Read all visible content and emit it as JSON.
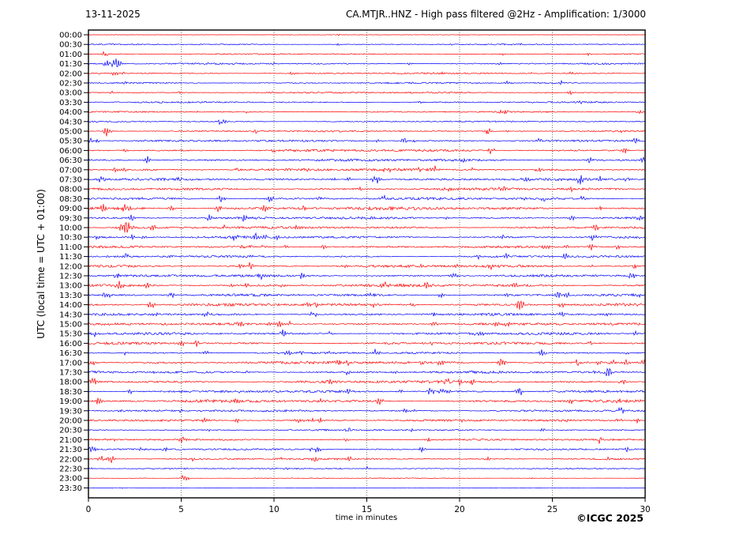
{
  "header": {
    "date": "13-11-2025",
    "title": "CA.MTJR..HNZ - High pass filtered @2Hz - Amplification: 1/3000"
  },
  "footer": {
    "copyright": "©ICGC 2025"
  },
  "chart_data": {
    "type": "line",
    "subtype": "helicorder-seismogram",
    "title": "CA.MTJR..HNZ - High pass filtered @2Hz - Amplification: 1/3000",
    "date": "13-11-2025",
    "station": "CA.MTJR..HNZ",
    "filter": "High pass filtered @2Hz",
    "amplification": "1/3000",
    "xlabel": "time in minutes",
    "ylabel": "UTC (local time = UTC + 01:00)",
    "xlim": [
      0,
      30
    ],
    "x_ticks": [
      0,
      5,
      10,
      15,
      20,
      25,
      30
    ],
    "grid": "vertical dotted lines every 5 minutes",
    "legend": "none",
    "colors": {
      "trace_red": "#ff0000",
      "trace_blue": "#0000ff",
      "grid": "#555555",
      "frame": "#000000",
      "text": "#000000",
      "background": "#ffffff"
    },
    "row_note": "48 half-hour traces, alternating red (on the hour) and blue (on the half hour). n = background noise half-amplitude (px-relative), ev = notable bursts as [minute, relative amplitude].",
    "rows": [
      {
        "t": "00:00",
        "c": "r",
        "n": 0.25,
        "ev": [
          [
            13.5,
            1.0
          ]
        ]
      },
      {
        "t": "00:30",
        "c": "b",
        "n": 0.7,
        "ev": [
          [
            13.5,
            1.2
          ],
          [
            19.5,
            1.2
          ],
          [
            23.0,
            1.0
          ]
        ]
      },
      {
        "t": "01:00",
        "c": "r",
        "n": 0.7,
        "ev": [
          [
            0.9,
            1.8
          ],
          [
            10.0,
            1.0
          ],
          [
            27.0,
            1.2
          ]
        ]
      },
      {
        "t": "01:30",
        "c": "b",
        "n": 0.9,
        "ev": [
          [
            1.0,
            2.5
          ],
          [
            1.5,
            4.5
          ],
          [
            7.0,
            1.0
          ]
        ]
      },
      {
        "t": "02:00",
        "c": "r",
        "n": 0.9,
        "ev": [
          [
            1.5,
            1.2
          ],
          [
            26.0,
            1.0
          ]
        ]
      },
      {
        "t": "02:30",
        "c": "b",
        "n": 0.9,
        "ev": [
          [
            2.0,
            1.0
          ],
          [
            25.5,
            1.5
          ]
        ]
      },
      {
        "t": "03:00",
        "c": "r",
        "n": 0.9,
        "ev": [
          [
            9.8,
            1.5
          ],
          [
            26.0,
            1.5
          ]
        ]
      },
      {
        "t": "03:30",
        "c": "b",
        "n": 0.9,
        "ev": [
          [
            26.5,
            1.5
          ]
        ]
      },
      {
        "t": "04:00",
        "c": "r",
        "n": 0.8,
        "ev": [
          [
            29.7,
            1.5
          ]
        ]
      },
      {
        "t": "04:30",
        "c": "b",
        "n": 0.8,
        "ev": [
          [
            7.2,
            2.8
          ]
        ]
      },
      {
        "t": "05:00",
        "c": "r",
        "n": 0.9,
        "ev": [
          [
            1.0,
            3.5
          ],
          [
            21.5,
            2.5
          ]
        ]
      },
      {
        "t": "05:30",
        "c": "b",
        "n": 1.2,
        "ev": [
          [
            0.5,
            1.5
          ],
          [
            17.0,
            2.2
          ],
          [
            29.5,
            2.8
          ]
        ]
      },
      {
        "t": "06:00",
        "c": "r",
        "n": 1.4,
        "ev": [
          [
            2.0,
            1.5
          ],
          [
            10.0,
            1.5
          ],
          [
            21.7,
            2.6
          ],
          [
            28.9,
            1.8
          ]
        ]
      },
      {
        "t": "06:30",
        "c": "b",
        "n": 1.4,
        "ev": [
          [
            3.2,
            2.6
          ],
          [
            20.2,
            2.2
          ],
          [
            27.0,
            1.8
          ],
          [
            29.9,
            2.2
          ]
        ]
      },
      {
        "t": "07:00",
        "c": "r",
        "n": 1.5,
        "ev": [
          [
            1.5,
            2.0
          ],
          [
            8.0,
            2.2
          ],
          [
            16.0,
            1.8
          ],
          [
            24.2,
            2.2
          ]
        ]
      },
      {
        "t": "07:30",
        "c": "b",
        "n": 1.4,
        "ev": [
          [
            0.7,
            2.5
          ],
          [
            15.5,
            3.0
          ],
          [
            23.6,
            2.5
          ],
          [
            26.5,
            3.0
          ],
          [
            29.0,
            2.0
          ]
        ]
      },
      {
        "t": "08:00",
        "c": "r",
        "n": 1.4,
        "ev": [
          [
            19.3,
            2.0
          ],
          [
            22.3,
            3.0
          ],
          [
            26.0,
            2.2
          ]
        ]
      },
      {
        "t": "08:30",
        "c": "b",
        "n": 1.4,
        "ev": [
          [
            3.0,
            2.2
          ],
          [
            9.8,
            2.5
          ],
          [
            16.0,
            2.5
          ],
          [
            24.5,
            1.8
          ]
        ]
      },
      {
        "t": "09:00",
        "c": "r",
        "n": 1.8,
        "ev": [
          [
            0.8,
            2.5
          ],
          [
            2.0,
            3.5
          ],
          [
            4.5,
            2.2
          ],
          [
            7.0,
            2.5
          ],
          [
            9.5,
            2.8
          ],
          [
            11.5,
            2.5
          ],
          [
            27.5,
            2.5
          ]
        ]
      },
      {
        "t": "09:30",
        "c": "b",
        "n": 1.4,
        "ev": [
          [
            2.3,
            2.5
          ],
          [
            6.5,
            2.0
          ],
          [
            26.0,
            2.5
          ],
          [
            29.7,
            2.0
          ]
        ]
      },
      {
        "t": "10:00",
        "c": "r",
        "n": 1.4,
        "ev": [
          [
            2.0,
            5.5
          ],
          [
            3.5,
            2.2
          ],
          [
            11.3,
            2.5
          ],
          [
            27.3,
            2.5
          ]
        ]
      },
      {
        "t": "10:30",
        "c": "b",
        "n": 1.4,
        "ev": [
          [
            0.5,
            1.8
          ],
          [
            3.0,
            2.2
          ],
          [
            9.0,
            2.2
          ],
          [
            27.2,
            2.5
          ]
        ]
      },
      {
        "t": "11:00",
        "c": "r",
        "n": 1.2,
        "ev": [
          [
            8.3,
            1.8
          ],
          [
            24.7,
            2.5
          ],
          [
            25.8,
            2.0
          ]
        ]
      },
      {
        "t": "11:30",
        "c": "b",
        "n": 1.2,
        "ev": [
          [
            2.0,
            2.2
          ],
          [
            8.7,
            2.0
          ],
          [
            21.0,
            1.8
          ],
          [
            25.7,
            2.5
          ]
        ]
      },
      {
        "t": "12:00",
        "c": "r",
        "n": 1.4,
        "ev": [
          [
            8.7,
            2.5
          ],
          [
            18.0,
            1.6
          ],
          [
            21.7,
            2.0
          ],
          [
            29.5,
            2.0
          ]
        ]
      },
      {
        "t": "12:30",
        "c": "b",
        "n": 1.4,
        "ev": [
          [
            1.5,
            2.0
          ],
          [
            9.3,
            1.8
          ],
          [
            11.5,
            2.0
          ],
          [
            19.7,
            2.6
          ],
          [
            29.3,
            2.2
          ]
        ]
      },
      {
        "t": "13:00",
        "c": "r",
        "n": 1.6,
        "ev": [
          [
            1.7,
            3.2
          ],
          [
            3.2,
            2.4
          ],
          [
            8.5,
            1.8
          ],
          [
            18.2,
            2.6
          ],
          [
            23.0,
            2.0
          ]
        ]
      },
      {
        "t": "13:30",
        "c": "b",
        "n": 1.4,
        "ev": [
          [
            1.0,
            3.2
          ],
          [
            4.5,
            2.2
          ],
          [
            19.0,
            2.0
          ],
          [
            25.3,
            2.6
          ],
          [
            29.6,
            2.0
          ]
        ]
      },
      {
        "t": "14:00",
        "c": "r",
        "n": 1.6,
        "ev": [
          [
            3.3,
            2.6
          ],
          [
            12.3,
            2.0
          ],
          [
            17.5,
            1.8
          ],
          [
            23.3,
            3.0
          ],
          [
            25.5,
            2.2
          ]
        ]
      },
      {
        "t": "14:30",
        "c": "b",
        "n": 1.4,
        "ev": [
          [
            6.3,
            2.0
          ],
          [
            12.0,
            1.6
          ],
          [
            25.5,
            2.6
          ]
        ]
      },
      {
        "t": "15:00",
        "c": "r",
        "n": 1.4,
        "ev": [
          [
            4.0,
            1.8
          ],
          [
            8.2,
            2.6
          ],
          [
            22.0,
            1.8
          ],
          [
            29.8,
            2.0
          ]
        ]
      },
      {
        "t": "15:30",
        "c": "b",
        "n": 1.4,
        "ev": [
          [
            0.3,
            2.6
          ],
          [
            13.0,
            1.6
          ],
          [
            20.7,
            2.6
          ],
          [
            29.5,
            2.0
          ]
        ]
      },
      {
        "t": "16:00",
        "c": "r",
        "n": 1.4,
        "ev": [
          [
            5.8,
            2.4
          ],
          [
            18.5,
            1.8
          ],
          [
            22.0,
            1.8
          ],
          [
            27.0,
            1.6
          ]
        ]
      },
      {
        "t": "16:30",
        "c": "b",
        "n": 1.2,
        "ev": [
          [
            2.0,
            1.8
          ],
          [
            13.0,
            1.6
          ],
          [
            24.5,
            2.4
          ],
          [
            29.0,
            1.6
          ]
        ]
      },
      {
        "t": "17:00",
        "c": "r",
        "n": 1.6,
        "ev": [
          [
            0.2,
            2.6
          ],
          [
            14.0,
            2.0
          ],
          [
            19.0,
            2.0
          ],
          [
            27.5,
            2.0
          ],
          [
            29.0,
            2.2
          ]
        ]
      },
      {
        "t": "17:30",
        "c": "b",
        "n": 1.4,
        "ev": [
          [
            8.5,
            2.0
          ],
          [
            14.0,
            2.0
          ],
          [
            16.5,
            1.8
          ],
          [
            28.0,
            2.8
          ]
        ]
      },
      {
        "t": "18:00",
        "c": "r",
        "n": 1.6,
        "ev": [
          [
            0.3,
            2.6
          ],
          [
            13.0,
            2.0
          ],
          [
            19.3,
            2.8
          ],
          [
            20.0,
            2.6
          ],
          [
            20.7,
            2.4
          ],
          [
            28.8,
            2.6
          ]
        ]
      },
      {
        "t": "18:30",
        "c": "b",
        "n": 1.4,
        "ev": [
          [
            2.3,
            2.0
          ],
          [
            8.0,
            1.8
          ],
          [
            14.0,
            1.8
          ],
          [
            19.0,
            2.2
          ],
          [
            23.2,
            3.2
          ]
        ]
      },
      {
        "t": "19:00",
        "c": "r",
        "n": 1.6,
        "ev": [
          [
            0.5,
            2.6
          ],
          [
            8.0,
            2.2
          ],
          [
            12.5,
            1.8
          ],
          [
            15.7,
            2.6
          ],
          [
            26.0,
            2.0
          ],
          [
            28.6,
            2.0
          ]
        ]
      },
      {
        "t": "19:30",
        "c": "b",
        "n": 1.2,
        "ev": [
          [
            1.7,
            1.8
          ],
          [
            5.0,
            1.8
          ],
          [
            17.5,
            1.8
          ],
          [
            28.7,
            2.6
          ]
        ]
      },
      {
        "t": "20:00",
        "c": "r",
        "n": 1.2,
        "ev": [
          [
            8.0,
            1.6
          ],
          [
            12.0,
            1.6
          ],
          [
            20.0,
            1.6
          ],
          [
            29.5,
            2.4
          ]
        ]
      },
      {
        "t": "20:30",
        "c": "b",
        "n": 0.9,
        "ev": [
          [
            6.5,
            1.2
          ],
          [
            14.0,
            1.4
          ],
          [
            24.5,
            1.4
          ]
        ]
      },
      {
        "t": "21:00",
        "c": "r",
        "n": 1.0,
        "ev": [
          [
            5.0,
            2.6
          ],
          [
            18.3,
            1.6
          ],
          [
            27.5,
            2.8
          ]
        ]
      },
      {
        "t": "21:30",
        "c": "b",
        "n": 1.0,
        "ev": [
          [
            0.2,
            2.6
          ],
          [
            12.3,
            2.8
          ],
          [
            18.0,
            2.0
          ],
          [
            29.0,
            1.4
          ]
        ]
      },
      {
        "t": "22:00",
        "c": "r",
        "n": 1.0,
        "ev": [
          [
            0.7,
            2.4
          ],
          [
            1.2,
            3.2
          ],
          [
            12.2,
            2.6
          ],
          [
            21.5,
            1.8
          ],
          [
            28.0,
            1.4
          ]
        ]
      },
      {
        "t": "22:30",
        "c": "b",
        "n": 0.7,
        "ev": [
          [
            15.0,
            1.2
          ]
        ]
      },
      {
        "t": "23:00",
        "c": "r",
        "n": 0.4,
        "ev": [
          [
            5.2,
            2.8
          ]
        ]
      },
      {
        "t": "23:30",
        "c": "b",
        "n": 0.25,
        "ev": []
      }
    ]
  }
}
